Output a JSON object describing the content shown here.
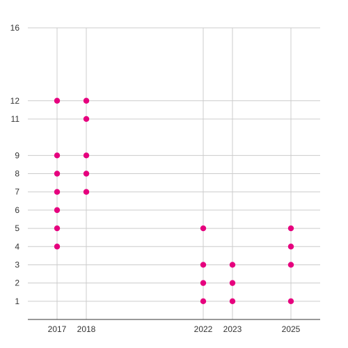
{
  "chart_data": {
    "type": "scatter",
    "title": "",
    "xlabel": "",
    "ylabel": "",
    "x_ticks": [
      2017,
      2018,
      2022,
      2023,
      2025
    ],
    "y_ticks": [
      1,
      2,
      3,
      4,
      5,
      6,
      7,
      8,
      9,
      11,
      12,
      16
    ],
    "xlim": [
      2016,
      2026
    ],
    "ylim": [
      0,
      16
    ],
    "grid": true,
    "legend": "none",
    "series": [
      {
        "color": "#e6007e",
        "points": [
          {
            "x": 2017,
            "y": 4
          },
          {
            "x": 2017,
            "y": 5
          },
          {
            "x": 2017,
            "y": 6
          },
          {
            "x": 2017,
            "y": 7
          },
          {
            "x": 2017,
            "y": 8
          },
          {
            "x": 2017,
            "y": 9
          },
          {
            "x": 2017,
            "y": 12
          },
          {
            "x": 2018,
            "y": 7
          },
          {
            "x": 2018,
            "y": 8
          },
          {
            "x": 2018,
            "y": 9
          },
          {
            "x": 2018,
            "y": 11
          },
          {
            "x": 2018,
            "y": 12
          },
          {
            "x": 2022,
            "y": 1
          },
          {
            "x": 2022,
            "y": 2
          },
          {
            "x": 2022,
            "y": 3
          },
          {
            "x": 2022,
            "y": 5
          },
          {
            "x": 2023,
            "y": 1
          },
          {
            "x": 2023,
            "y": 2
          },
          {
            "x": 2023,
            "y": 3
          },
          {
            "x": 2025,
            "y": 1
          },
          {
            "x": 2025,
            "y": 3
          },
          {
            "x": 2025,
            "y": 4
          },
          {
            "x": 2025,
            "y": 5
          }
        ]
      }
    ]
  }
}
